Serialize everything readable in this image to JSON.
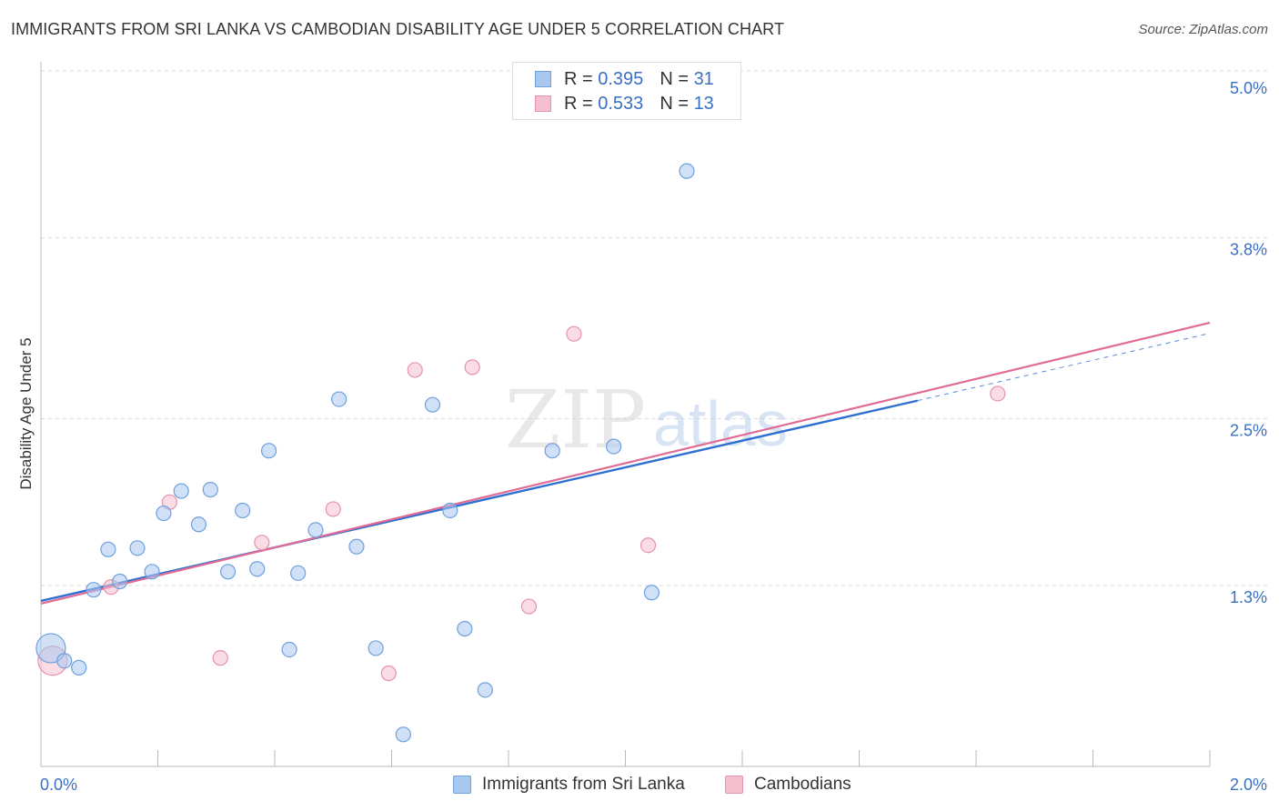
{
  "title": "IMMIGRANTS FROM SRI LANKA VS CAMBODIAN DISABILITY AGE UNDER 5 CORRELATION CHART",
  "source": "Source: ZipAtlas.com",
  "watermark": {
    "zip": "ZIP",
    "atlas": "atlas"
  },
  "legend": {
    "rows": [
      {
        "r_label": "R = ",
        "r_value": "0.395",
        "n_label": "N = ",
        "n_value": "31"
      },
      {
        "r_label": "R = ",
        "r_value": "0.533",
        "n_label": "N = ",
        "n_value": "13"
      }
    ]
  },
  "bottom_legend": [
    "Immigrants from Sri Lanka",
    "Cambodians"
  ],
  "colors": {
    "blue_fill": "#a9c8f0",
    "blue_stroke": "#6f9fdc",
    "blue_line": "#2f6fd0",
    "pink_fill": "#f6bfd0",
    "pink_stroke": "#e592ad",
    "pink_line": "#e06b94",
    "tick_label": "#3a6fc4",
    "grid": "#d9d9d9"
  },
  "chart_data": {
    "type": "scatter",
    "title": "IMMIGRANTS FROM SRI LANKA VS CAMBODIAN DISABILITY AGE UNDER 5 CORRELATION CHART",
    "xlabel": "",
    "ylabel": "Disability Age Under 5",
    "xlim": [
      0.0,
      2.0
    ],
    "ylim": [
      0.0,
      5.0
    ],
    "x_tick_labels": [
      "0.0%",
      "2.0%"
    ],
    "y_ticks": [
      1.3,
      2.5,
      3.8,
      5.0
    ],
    "y_tick_labels": [
      "1.3%",
      "2.5%",
      "3.8%",
      "5.0%"
    ],
    "grid": "horizontal dashed",
    "series": [
      {
        "name": "Immigrants from Sri Lanka",
        "color": "#a9c8f0",
        "points": [
          {
            "x": 0.017,
            "y": 0.85,
            "big": true
          },
          {
            "x": 0.04,
            "y": 0.76
          },
          {
            "x": 0.065,
            "y": 0.71
          },
          {
            "x": 0.09,
            "y": 1.27
          },
          {
            "x": 0.115,
            "y": 1.56
          },
          {
            "x": 0.135,
            "y": 1.33
          },
          {
            "x": 0.165,
            "y": 1.57
          },
          {
            "x": 0.19,
            "y": 1.4
          },
          {
            "x": 0.21,
            "y": 1.82
          },
          {
            "x": 0.24,
            "y": 1.98
          },
          {
            "x": 0.27,
            "y": 1.74
          },
          {
            "x": 0.29,
            "y": 1.99
          },
          {
            "x": 0.32,
            "y": 1.4
          },
          {
            "x": 0.345,
            "y": 1.84
          },
          {
            "x": 0.37,
            "y": 1.42
          },
          {
            "x": 0.39,
            "y": 2.27
          },
          {
            "x": 0.425,
            "y": 0.84
          },
          {
            "x": 0.44,
            "y": 1.39
          },
          {
            "x": 0.47,
            "y": 1.7
          },
          {
            "x": 0.51,
            "y": 2.64
          },
          {
            "x": 0.54,
            "y": 1.58
          },
          {
            "x": 0.573,
            "y": 0.85
          },
          {
            "x": 0.62,
            "y": 0.23
          },
          {
            "x": 0.67,
            "y": 2.6
          },
          {
            "x": 0.7,
            "y": 1.84
          },
          {
            "x": 0.725,
            "y": 0.99
          },
          {
            "x": 0.76,
            "y": 0.55
          },
          {
            "x": 0.875,
            "y": 2.27
          },
          {
            "x": 0.98,
            "y": 2.3
          },
          {
            "x": 1.045,
            "y": 1.25
          },
          {
            "x": 1.105,
            "y": 4.28
          }
        ],
        "trend": {
          "x0": 0.0,
          "y0": 1.19,
          "x1": 1.5,
          "y1": 2.63,
          "dash_to_x": 1.996,
          "dash_to_y": 3.11
        }
      },
      {
        "name": "Cambodians",
        "color": "#f6bfd0",
        "points": [
          {
            "x": 0.02,
            "y": 0.76,
            "big": true
          },
          {
            "x": 0.12,
            "y": 1.29
          },
          {
            "x": 0.22,
            "y": 1.9
          },
          {
            "x": 0.307,
            "y": 0.78
          },
          {
            "x": 0.378,
            "y": 1.61
          },
          {
            "x": 0.5,
            "y": 1.85
          },
          {
            "x": 0.595,
            "y": 0.67
          },
          {
            "x": 0.64,
            "y": 2.85
          },
          {
            "x": 0.738,
            "y": 2.87
          },
          {
            "x": 0.835,
            "y": 1.15
          },
          {
            "x": 0.912,
            "y": 3.11
          },
          {
            "x": 1.039,
            "y": 1.59
          },
          {
            "x": 1.637,
            "y": 2.68
          }
        ],
        "trend": {
          "x0": 0.0,
          "y0": 1.17,
          "x1": 2.0,
          "y1": 3.19
        }
      }
    ]
  }
}
